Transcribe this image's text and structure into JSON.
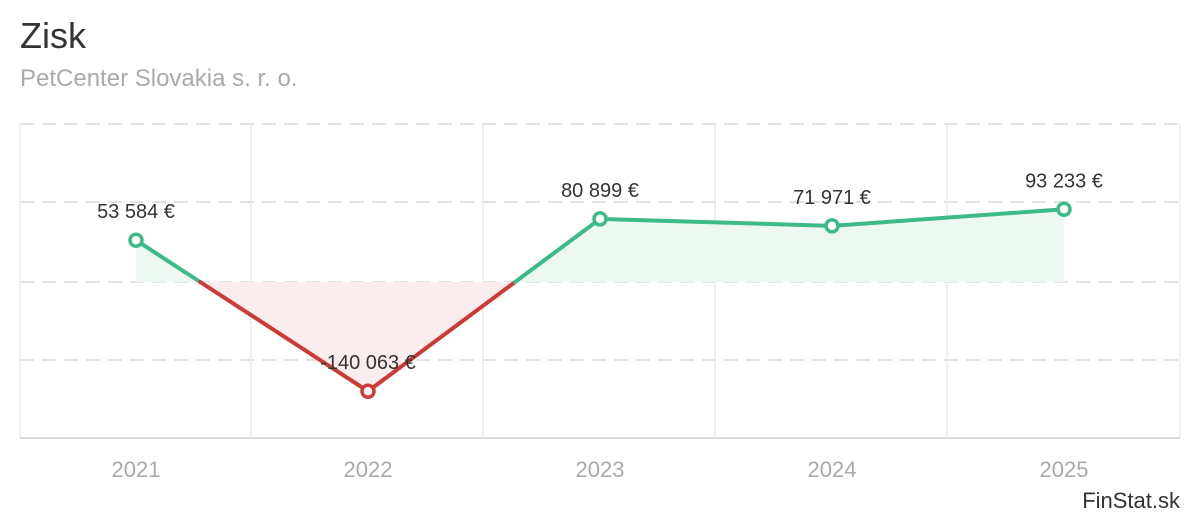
{
  "header": {
    "title": "Zisk",
    "subtitle": "PetCenter Slovakia s. r. o."
  },
  "credits": "FinStat.sk",
  "colors": {
    "positive": "#3cba87",
    "negative": "#cc3a36",
    "positive_fill": "#eef8f3",
    "negative_fill": "#fbeced",
    "grid": "#e2e2e2",
    "axis_label": "#aaaaaa",
    "data_label": "#333333"
  },
  "chart_data": {
    "type": "line",
    "categories": [
      "2021",
      "2022",
      "2023",
      "2024",
      "2025"
    ],
    "values": [
      53584,
      -140063,
      80899,
      71971,
      93233
    ],
    "data_labels": [
      "53 584 €",
      "-140 063 €",
      "80 899 €",
      "71 971 €",
      "93 233 €"
    ],
    "title": "Zisk",
    "subtitle": "PetCenter Slovakia s. r. o.",
    "xlabel": "",
    "ylabel": "",
    "ylim": [
      -200000,
      200000
    ],
    "grid": true,
    "legend": "none"
  }
}
